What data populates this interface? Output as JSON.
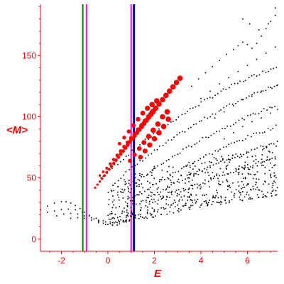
{
  "chart_data": {
    "type": "scatter",
    "xlabel": "E",
    "ylabel": "<M>",
    "xlim": [
      -2.9,
      7.3
    ],
    "ylim": [
      -10,
      192
    ],
    "x_ticks": [
      -2,
      0,
      2,
      4,
      6
    ],
    "y_ticks": [
      0,
      50,
      100,
      150
    ],
    "grid": false,
    "colors": {
      "axis": "#ff0000",
      "points": "#000000",
      "highlight": "#ff0000",
      "line_green": "#008000",
      "line_magenta": "#ff00ff",
      "line_blue": "#0000ff"
    },
    "vertical_lines": [
      {
        "x": -1.08,
        "color": "#008000"
      },
      {
        "x": -0.92,
        "color": "#ff00ff"
      },
      {
        "x": 1.0,
        "color": "#ff00ff"
      },
      {
        "x": 1.12,
        "color": "#0000ff"
      }
    ],
    "ground_branch": [
      [
        -2.9,
        24
      ],
      [
        -2.6,
        27
      ],
      [
        -2.3,
        29.5
      ],
      [
        -2.0,
        30.5
      ],
      [
        -1.8,
        30.5
      ],
      [
        -1.6,
        29.5
      ],
      [
        -1.4,
        27.5
      ],
      [
        -1.2,
        25
      ],
      [
        -1.0,
        22
      ],
      [
        -0.8,
        19
      ],
      [
        -0.6,
        16.5
      ],
      [
        -0.4,
        14.5
      ],
      [
        -0.2,
        13
      ],
      [
        0.0,
        12
      ],
      [
        0.2,
        11.5
      ],
      [
        0.4,
        11.5
      ],
      [
        -2.6,
        22
      ],
      [
        -2.3,
        23
      ],
      [
        -2.0,
        24
      ],
      [
        -1.7,
        24.5
      ],
      [
        -1.4,
        24
      ],
      [
        -1.1,
        22
      ],
      [
        -0.8,
        19.5
      ],
      [
        -0.5,
        17
      ],
      [
        -0.2,
        15
      ],
      [
        0.1,
        14
      ],
      [
        0.4,
        13.5
      ],
      [
        0.7,
        14
      ],
      [
        -2.2,
        19
      ],
      [
        -1.9,
        20.5
      ],
      [
        -1.6,
        21
      ],
      [
        -1.3,
        20.5
      ],
      [
        -1.0,
        19
      ],
      [
        -0.7,
        17.5
      ],
      [
        -0.4,
        15.5
      ],
      [
        -0.1,
        14
      ],
      [
        0.2,
        13.5
      ],
      [
        0.5,
        14
      ],
      [
        0.8,
        15.5
      ],
      [
        1.1,
        17.5
      ],
      [
        1.4,
        20
      ],
      [
        1.7,
        22
      ],
      [
        2.0,
        24
      ],
      [
        -1.6,
        17
      ],
      [
        -1.3,
        17.5
      ],
      [
        -1.0,
        17
      ],
      [
        -0.7,
        15.5
      ],
      [
        -0.4,
        13.5
      ],
      [
        -0.1,
        12
      ],
      [
        0.2,
        11.5
      ],
      [
        0.5,
        12.5
      ],
      [
        0.8,
        14
      ],
      [
        1.1,
        16
      ],
      [
        1.4,
        18.5
      ],
      [
        1.7,
        21
      ],
      [
        2.0,
        23
      ],
      [
        2.3,
        25.5
      ],
      [
        2.6,
        28
      ],
      [
        2.9,
        30
      ],
      [
        3.2,
        32
      ],
      [
        3.5,
        34
      ],
      [
        3.8,
        36
      ]
    ],
    "band_slopes": [
      {
        "start": [
          -0.3,
          50
        ],
        "slope": 17.2
      },
      {
        "start": [
          0.2,
          45
        ],
        "slope": 16.0
      },
      {
        "start": [
          0.6,
          38
        ],
        "slope": 14.6
      },
      {
        "start": [
          1.0,
          32
        ],
        "slope": 12.8
      },
      {
        "start": [
          1.4,
          30
        ],
        "slope": 11.0
      },
      {
        "start": [
          1.8,
          28
        ],
        "slope": 9.0
      }
    ],
    "upper_band": [
      [
        3.6,
        125
      ],
      [
        3.9,
        131
      ],
      [
        4.2,
        136
      ],
      [
        4.5,
        141
      ],
      [
        4.8,
        146
      ],
      [
        5.1,
        151
      ],
      [
        5.4,
        155
      ],
      [
        5.6,
        158
      ],
      [
        5.8,
        161
      ],
      [
        6.0,
        159
      ],
      [
        6.2,
        156
      ],
      [
        6.4,
        160
      ],
      [
        6.6,
        166
      ],
      [
        6.8,
        172
      ],
      [
        7.0,
        178
      ],
      [
        7.2,
        183
      ],
      [
        4.0,
        115
      ],
      [
        4.4,
        121
      ],
      [
        4.8,
        127
      ],
      [
        5.2,
        132
      ],
      [
        5.6,
        137
      ],
      [
        6.0,
        142
      ],
      [
        6.4,
        147
      ],
      [
        6.8,
        152
      ],
      [
        7.2,
        157
      ],
      [
        7.4,
        160
      ],
      [
        4.6,
        99
      ],
      [
        5.0,
        104
      ],
      [
        5.4,
        109
      ],
      [
        5.8,
        114
      ],
      [
        6.2,
        118
      ],
      [
        6.6,
        121
      ],
      [
        7.0,
        124
      ],
      [
        7.3,
        126
      ],
      [
        5.0,
        82
      ],
      [
        5.4,
        87
      ],
      [
        5.8,
        92
      ],
      [
        6.2,
        96
      ],
      [
        6.6,
        99
      ],
      [
        7.0,
        103
      ],
      [
        7.3,
        106
      ],
      [
        5.8,
        180
      ],
      [
        6.1,
        176
      ],
      [
        6.5,
        171
      ],
      [
        6.9,
        176
      ],
      [
        7.2,
        189
      ]
    ],
    "dense_region": {
      "x_range": [
        0.0,
        7.3
      ],
      "y_min_at_x": [
        [
          0,
          12
        ],
        [
          2,
          18
        ],
        [
          4,
          26
        ],
        [
          6,
          32
        ],
        [
          7.3,
          36
        ]
      ],
      "y_max_at_x": [
        [
          0,
          45
        ],
        [
          2,
          60
        ],
        [
          4,
          65
        ],
        [
          6,
          72
        ],
        [
          7.3,
          80
        ]
      ]
    },
    "highlight_series": [
      [
        -0.55,
        42
      ],
      [
        -0.45,
        44.5
      ],
      [
        -0.35,
        47
      ],
      [
        -0.25,
        49.5
      ],
      [
        -0.15,
        52
      ],
      [
        -0.05,
        54.5
      ],
      [
        0.05,
        57
      ],
      [
        0.15,
        59.5
      ],
      [
        0.25,
        62
      ],
      [
        0.35,
        64.5
      ],
      [
        0.45,
        67
      ],
      [
        0.55,
        69.5
      ],
      [
        0.65,
        72
      ],
      [
        0.75,
        74.5
      ],
      [
        0.85,
        77
      ],
      [
        0.95,
        79.5
      ],
      [
        1.05,
        82
      ],
      [
        1.15,
        84.5
      ],
      [
        1.25,
        87
      ],
      [
        1.35,
        89.5
      ],
      [
        1.45,
        92
      ],
      [
        1.55,
        94.5
      ],
      [
        1.65,
        97
      ],
      [
        1.75,
        99.5
      ],
      [
        1.85,
        102
      ],
      [
        1.95,
        104.5
      ],
      [
        2.05,
        107
      ],
      [
        -0.35,
        52
      ],
      [
        -0.2,
        55
      ],
      [
        -0.05,
        58
      ],
      [
        0.1,
        61.5
      ],
      [
        0.25,
        65
      ],
      [
        0.4,
        68.5
      ],
      [
        0.55,
        72
      ],
      [
        0.7,
        75.5
      ],
      [
        0.85,
        79
      ],
      [
        1.0,
        82.5
      ],
      [
        1.15,
        86
      ],
      [
        1.3,
        89.5
      ],
      [
        1.45,
        93
      ],
      [
        1.6,
        96.5
      ],
      [
        1.75,
        100
      ],
      [
        1.9,
        103.5
      ],
      [
        2.05,
        107
      ],
      [
        2.2,
        110.5
      ],
      [
        2.35,
        114
      ],
      [
        2.5,
        117.5
      ],
      [
        2.65,
        121
      ],
      [
        2.8,
        124.5
      ],
      [
        2.95,
        128
      ],
      [
        3.1,
        131.5
      ],
      [
        0.5,
        78
      ],
      [
        0.7,
        83
      ],
      [
        0.9,
        88
      ],
      [
        1.1,
        93
      ],
      [
        1.3,
        98
      ],
      [
        1.5,
        103
      ],
      [
        1.7,
        107
      ],
      [
        1.9,
        110
      ],
      [
        2.1,
        113
      ],
      [
        0.95,
        64
      ],
      [
        1.15,
        69
      ],
      [
        1.35,
        74
      ],
      [
        1.55,
        79
      ],
      [
        1.75,
        84
      ],
      [
        1.95,
        89
      ],
      [
        2.15,
        94
      ],
      [
        2.35,
        100
      ],
      [
        2.55,
        104
      ],
      [
        1.4,
        67
      ],
      [
        1.6,
        72
      ],
      [
        1.8,
        77
      ],
      [
        2.0,
        82
      ],
      [
        2.2,
        87
      ],
      [
        2.4,
        92
      ],
      [
        2.6,
        98
      ]
    ]
  }
}
